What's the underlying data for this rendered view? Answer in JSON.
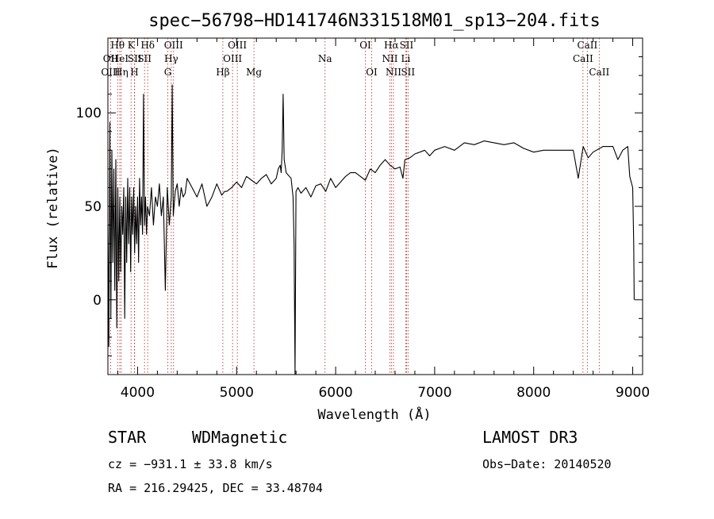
{
  "chart_data": {
    "type": "line",
    "title": "spec−56798−HD141746N331518M01_sp13−204.fits",
    "xlabel": "Wavelength (Å)",
    "ylabel": "Flux (relative)",
    "xlim": [
      3700,
      9100
    ],
    "ylim": [
      -40,
      140
    ],
    "xticks": [
      4000,
      5000,
      6000,
      7000,
      8000,
      9000
    ],
    "yticks": [
      0,
      50,
      100
    ],
    "grid": false,
    "legend": "none",
    "line_color": "#000000",
    "marker_color": "#b22222",
    "series": [
      {
        "x": [
          3700,
          3710,
          3720,
          3730,
          3740,
          3750,
          3760,
          3770,
          3780,
          3790,
          3800,
          3810,
          3820,
          3830,
          3840,
          3850,
          3860,
          3870,
          3880,
          3890,
          3900,
          3910,
          3920,
          3930,
          3940,
          3950,
          3960,
          3970,
          3980,
          3990,
          4000,
          4010,
          4020,
          4030,
          4040,
          4050,
          4060,
          4070,
          4080,
          4090,
          4100,
          4120,
          4140,
          4160,
          4180,
          4200,
          4220,
          4240,
          4260,
          4280,
          4300,
          4320,
          4340,
          4350,
          4360,
          4380,
          4400,
          4420,
          4440,
          4460,
          4480,
          4500,
          4550,
          4600,
          4650,
          4700,
          4750,
          4800,
          4850,
          4880,
          4900,
          4950,
          5000,
          5050,
          5100,
          5150,
          5200,
          5250,
          5300,
          5350,
          5400,
          5420,
          5440,
          5450,
          5460,
          5470,
          5480,
          5500,
          5550,
          5570,
          5580,
          5590,
          5600,
          5620,
          5650,
          5700,
          5750,
          5800,
          5850,
          5900,
          5950,
          6000,
          6050,
          6100,
          6150,
          6200,
          6250,
          6300,
          6350,
          6400,
          6450,
          6500,
          6550,
          6600,
          6650,
          6680,
          6700,
          6750,
          6800,
          6850,
          6900,
          6950,
          7000,
          7100,
          7200,
          7300,
          7400,
          7500,
          7600,
          7700,
          7800,
          7900,
          8000,
          8100,
          8200,
          8300,
          8400,
          8450,
          8500,
          8550,
          8600,
          8700,
          8800,
          8850,
          8900,
          8950,
          8970,
          9000,
          9010,
          9015
        ],
        "y": [
          40,
          -25,
          95,
          -10,
          80,
          20,
          70,
          5,
          75,
          -15,
          60,
          10,
          55,
          15,
          50,
          35,
          60,
          -10,
          55,
          20,
          65,
          30,
          60,
          15,
          55,
          35,
          60,
          25,
          50,
          30,
          55,
          20,
          65,
          40,
          55,
          35,
          110,
          40,
          55,
          35,
          50,
          45,
          60,
          40,
          55,
          50,
          62,
          45,
          55,
          5,
          60,
          40,
          55,
          115,
          45,
          58,
          62,
          50,
          60,
          55,
          57,
          65,
          60,
          55,
          62,
          50,
          55,
          62,
          56,
          58,
          58,
          60,
          63,
          60,
          66,
          64,
          62,
          65,
          67,
          62,
          65,
          70,
          72,
          68,
          80,
          110,
          75,
          68,
          65,
          55,
          30,
          -40,
          58,
          60,
          57,
          60,
          55,
          61,
          62,
          58,
          65,
          60,
          63,
          66,
          68,
          68,
          66,
          64,
          70,
          68,
          72,
          75,
          72,
          70,
          71,
          65,
          75,
          76,
          78,
          79,
          80,
          77,
          80,
          82,
          80,
          84,
          83,
          85,
          84,
          83,
          84,
          81,
          79,
          80,
          80,
          80,
          80,
          65,
          82,
          76,
          79,
          82,
          82,
          75,
          80,
          82,
          66,
          60,
          30,
          0
        ],
        "values": [
          40,
          -25,
          95,
          -10,
          80,
          20,
          70,
          5,
          75,
          -15,
          60,
          10,
          55,
          15,
          50,
          35,
          60,
          -10,
          55,
          20,
          65,
          30,
          60,
          15,
          55,
          35,
          60,
          25,
          50,
          30,
          55,
          20,
          65,
          40,
          55,
          35,
          110,
          40,
          55,
          35,
          50,
          45,
          60,
          40,
          55,
          50,
          62,
          45,
          55,
          5,
          60,
          40,
          55,
          115,
          45,
          58,
          62,
          50,
          60,
          55,
          57,
          65,
          60,
          55,
          62,
          50,
          55,
          62,
          56,
          58,
          58,
          60,
          63,
          60,
          66,
          64,
          62,
          65,
          67,
          62,
          65,
          70,
          72,
          68,
          80,
          110,
          75,
          68,
          65,
          55,
          30,
          -40,
          58,
          60,
          57,
          60,
          55,
          61,
          62,
          58,
          65,
          60,
          63,
          66,
          68,
          68,
          66,
          64,
          70,
          68,
          72,
          75,
          72,
          70,
          71,
          65,
          75,
          76,
          78,
          79,
          80,
          77,
          80,
          82,
          80,
          84,
          83,
          85,
          84,
          83,
          84,
          81,
          79,
          80,
          80,
          80,
          80,
          65,
          82,
          76,
          79,
          82,
          82,
          75,
          80,
          82,
          66,
          60,
          30,
          0
        ]
      }
    ],
    "line_markers": [
      {
        "label": "OII",
        "wl": 3727,
        "row": 1
      },
      {
        "label": "OIII",
        "wl": 3727,
        "row": 2
      },
      {
        "label": "Hθ",
        "wl": 3798,
        "row": 0
      },
      {
        "label": "HeI",
        "wl": 3820,
        "row": 1
      },
      {
        "label": "Hη",
        "wl": 3835,
        "row": 2
      },
      {
        "label": "K",
        "wl": 3934,
        "row": 0
      },
      {
        "label": "SII",
        "wl": 3970,
        "row": 1
      },
      {
        "label": "H",
        "wl": 3968,
        "row": 2
      },
      {
        "label": "Hδ",
        "wl": 4102,
        "row": 0
      },
      {
        "label": "SII",
        "wl": 4070,
        "row": 1
      },
      {
        "label": "OIII",
        "wl": 4363,
        "row": 0
      },
      {
        "label": "Hγ",
        "wl": 4340,
        "row": 1
      },
      {
        "label": "G",
        "wl": 4305,
        "row": 2
      },
      {
        "label": "OIII",
        "wl": 5007,
        "row": 0
      },
      {
        "label": "OIII",
        "wl": 4959,
        "row": 1
      },
      {
        "label": "Hβ",
        "wl": 4861,
        "row": 2
      },
      {
        "label": "Mg",
        "wl": 5175,
        "row": 2
      },
      {
        "label": "Na",
        "wl": 5893,
        "row": 1
      },
      {
        "label": "OI",
        "wl": 6300,
        "row": 0
      },
      {
        "label": "OI",
        "wl": 6364,
        "row": 2
      },
      {
        "label": "Hα",
        "wl": 6563,
        "row": 0
      },
      {
        "label": "SII",
        "wl": 6716,
        "row": 0
      },
      {
        "label": "NII",
        "wl": 6548,
        "row": 1
      },
      {
        "label": "Li",
        "wl": 6708,
        "row": 1
      },
      {
        "label": "NII",
        "wl": 6584,
        "row": 2
      },
      {
        "label": "SII",
        "wl": 6731,
        "row": 2
      },
      {
        "label": "CaII",
        "wl": 8542,
        "row": 0
      },
      {
        "label": "CaII",
        "wl": 8498,
        "row": 1
      },
      {
        "label": "CaII",
        "wl": 8662,
        "row": 2
      }
    ]
  },
  "info": {
    "class": "STAR",
    "subclass": "WDMagnetic",
    "survey": "LAMOST DR3",
    "cz": "cz = −931.1 ± 33.8 km/s",
    "obs_date": "Obs−Date: 20140520",
    "coords": "RA = 216.29425, DEC =  33.48704"
  }
}
